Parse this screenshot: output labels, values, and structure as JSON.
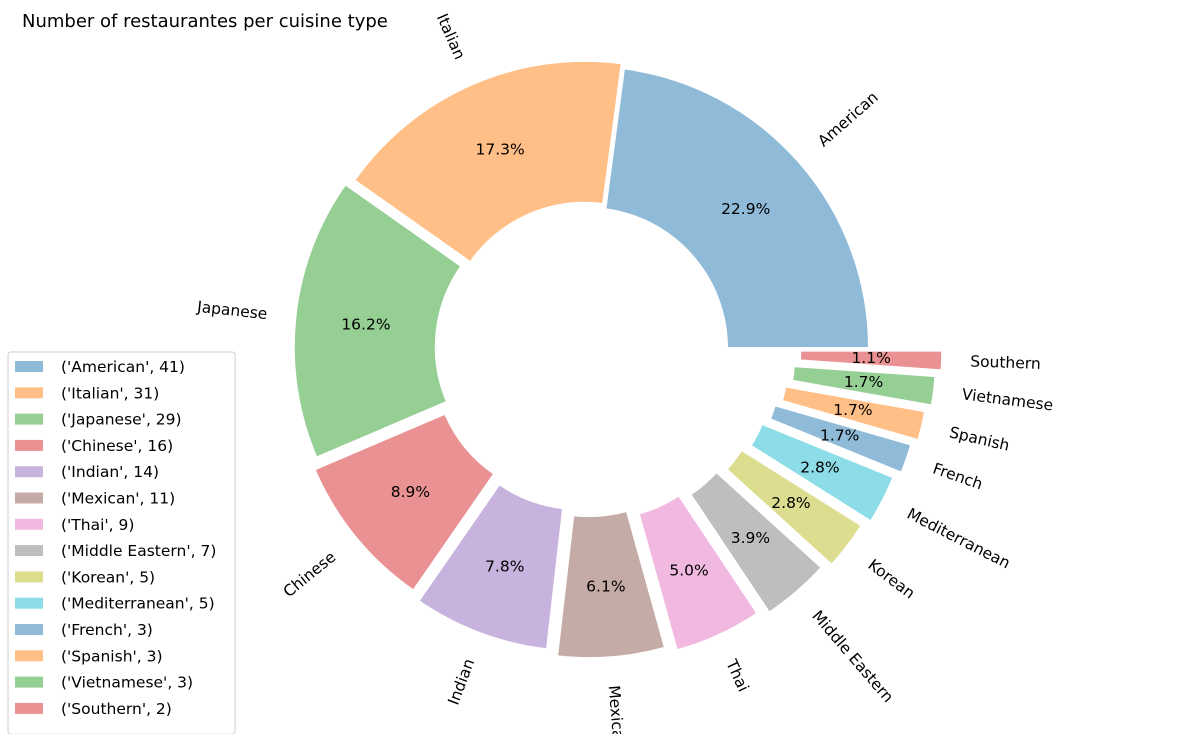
{
  "chart_data": {
    "type": "pie",
    "title": "Number of restaurantes per cuisine type",
    "categories": [
      "American",
      "Italian",
      "Japanese",
      "Chinese",
      "Indian",
      "Mexican",
      "Thai",
      "Middle Eastern",
      "Korean",
      "Mediterranean",
      "French",
      "Spanish",
      "Vietnamese",
      "Southern"
    ],
    "values": [
      41,
      31,
      29,
      16,
      14,
      11,
      9,
      7,
      5,
      5,
      3,
      3,
      3,
      2
    ],
    "percent_labels": [
      "22.9%",
      "17.3%",
      "16.2%",
      "8.9%",
      "7.8%",
      "6.1%",
      "5.0%",
      "3.9%",
      "2.8%",
      "2.8%",
      "1.7%",
      "1.7%",
      "1.7%",
      "1.1%"
    ],
    "legend_entries": [
      "('American', 41)",
      "('Italian', 31)",
      "('Japanese', 29)",
      "('Chinese', 16)",
      "('Indian', 14)",
      "('Mexican', 11)",
      "('Thai', 9)",
      "('Middle Eastern', 7)",
      "('Korean', 5)",
      "('Mediterranean', 5)",
      "('French', 3)",
      "('Spanish', 3)",
      "('Vietnamese', 3)",
      "('Southern', 2)"
    ],
    "colors": [
      "#8fbad8",
      "#ffbf86",
      "#96cf94",
      "#ea9293",
      "#c8b2de",
      "#c5aba5",
      "#f1b9e0",
      "#bebebe",
      "#dcdd8f",
      "#8cdde7",
      "#8fbad8",
      "#ffbf86",
      "#96cf94",
      "#ea9293"
    ],
    "explode": [
      0,
      0.02,
      0.04,
      0.06,
      0.08,
      0.1,
      0.12,
      0.14,
      0.16,
      0.18,
      0.2,
      0.22,
      0.24,
      0.26
    ],
    "donut": true,
    "start_angle": 0,
    "direction": "counterclockwise",
    "legend_location": "lower-left"
  }
}
